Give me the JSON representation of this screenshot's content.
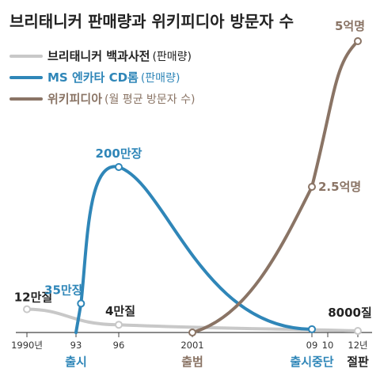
{
  "chart_data": {
    "type": "line",
    "title": "브리태니커 판매량과 위키피디아 방문자 수",
    "xlabel": "",
    "ylabel": "",
    "x_ticks": [
      "1990년",
      "93",
      "96",
      "2001",
      "09",
      "10",
      "12년"
    ],
    "x_tick_values": [
      1990,
      1993,
      1996,
      2001,
      2009,
      2010,
      2012
    ],
    "xlim": [
      1989.9,
      2013.1
    ],
    "events": [
      {
        "label": "출시",
        "year": 1993,
        "color": "#2f86b8"
      },
      {
        "label": "출범",
        "year": 2001,
        "color": "#8a7465"
      },
      {
        "label": "출시중단",
        "year": 2009,
        "color": "#2f86b8"
      },
      {
        "label": "절판",
        "year": 2012,
        "color": "#222222"
      }
    ],
    "series": [
      {
        "name": "브리태니커 백과사전",
        "note": "(판매량)",
        "color": "#c8c8c8",
        "unit": "만질",
        "x": [
          1990,
          1996,
          2012
        ],
        "values": [
          12,
          4,
          0.8
        ],
        "labels": [
          "12만질",
          "4만질",
          "8000질"
        ]
      },
      {
        "name": "MS 엔카타 CD롬",
        "note": "(판매량)",
        "color": "#2f86b8",
        "unit": "만장",
        "x": [
          1993,
          1993.35,
          1996,
          2009
        ],
        "values": [
          0,
          35,
          200,
          4
        ],
        "labels": [
          "",
          "35만장",
          "200만장",
          ""
        ]
      },
      {
        "name": "위키피디아",
        "note": "(월 평균 방문자 수)",
        "color": "#8a7465",
        "unit": "억명",
        "x": [
          2001,
          2009,
          2012
        ],
        "values": [
          0,
          2.5,
          5
        ],
        "labels": [
          "",
          "2.5억명",
          "5억명"
        ]
      }
    ],
    "colors": {
      "britannica": "#c8c8c8",
      "encarta": "#2f86b8",
      "wikipedia": "#8a7465",
      "axis": "#444444"
    }
  }
}
